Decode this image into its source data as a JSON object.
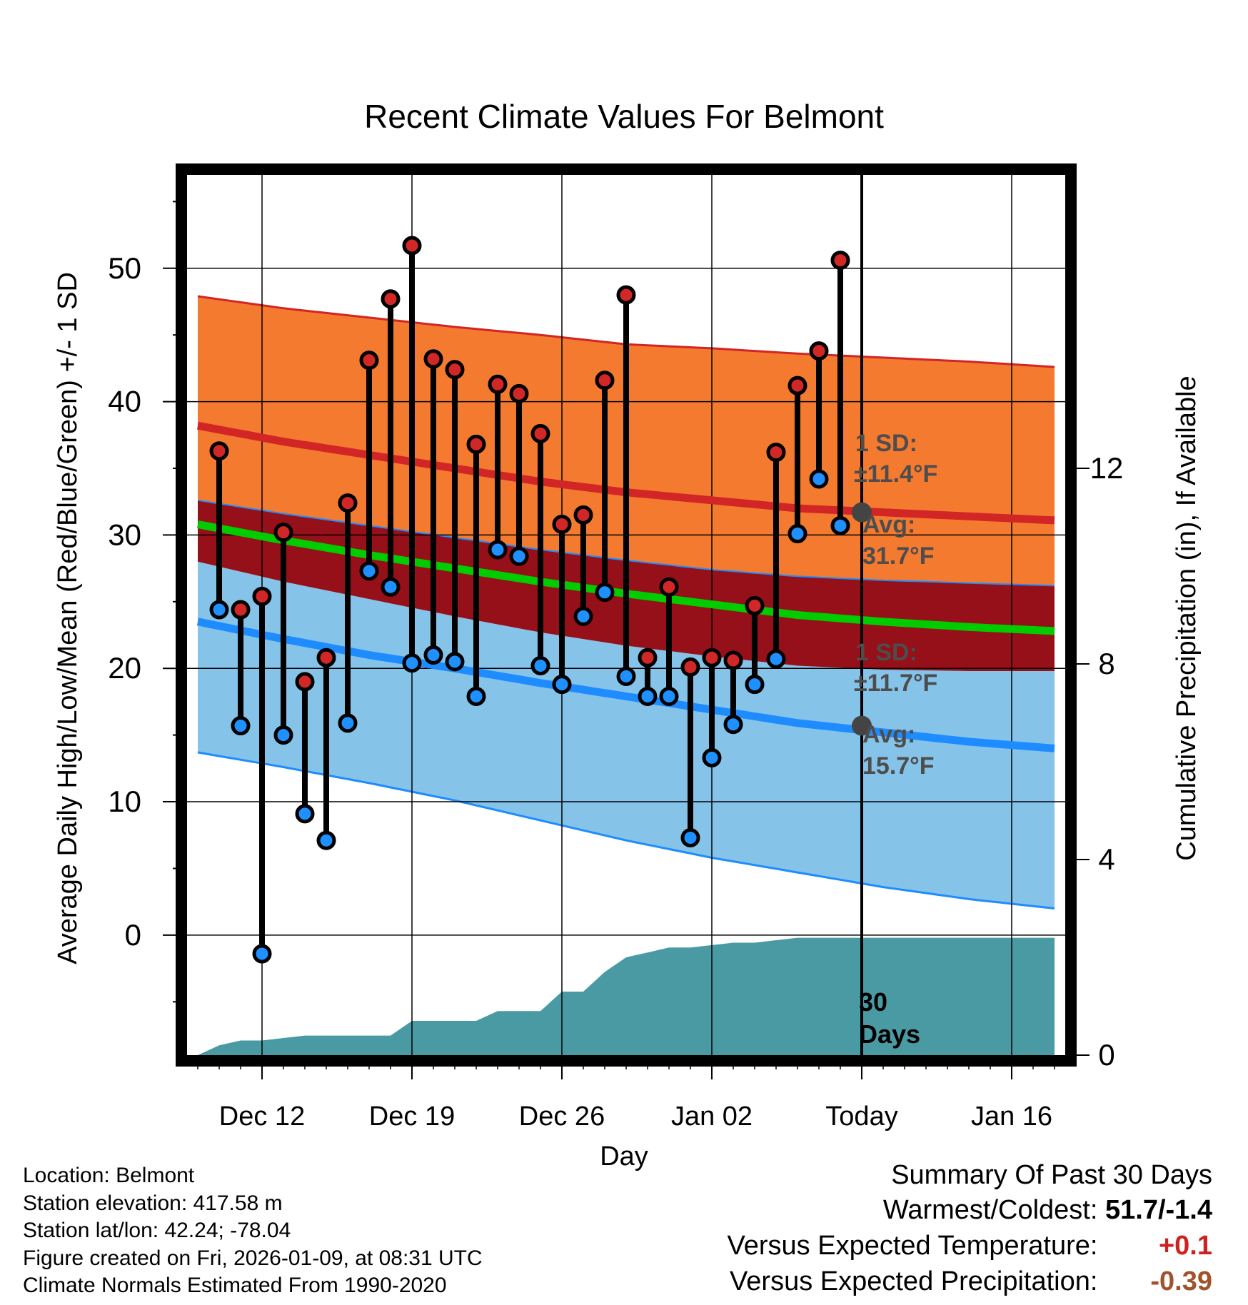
{
  "chart_data": {
    "type": "range-bar",
    "title": "Recent Climate Values For Belmont",
    "xlabel": "Day",
    "ylabel_left": "Average Daily High/Low/Mean (Red/Blue/Green) +/- 1 SD",
    "ylabel_right": "Cumulative Precipitation (in), If Available",
    "x_range": [
      -0.5,
      40.5
    ],
    "ylim_left": [
      -9,
      57
    ],
    "ylim_right": [
      0,
      18
    ],
    "x_tick_days": [
      3,
      10,
      17,
      24,
      31,
      38
    ],
    "x_tick_labels": [
      "Dec 12",
      "Dec 19",
      "Dec 26",
      "Jan 02",
      "Today",
      "Jan 16"
    ],
    "y_left_ticks": [
      0,
      10,
      20,
      30,
      40,
      50
    ],
    "y_right_ticks": [
      0,
      4,
      8,
      12
    ],
    "today_day": 31,
    "daily_high": [
      36.3,
      24.4,
      25.4,
      30.2,
      19.0,
      20.8,
      32.4,
      43.1,
      47.7,
      51.7,
      43.2,
      42.4,
      36.8,
      41.3,
      40.6,
      37.6,
      30.8,
      31.5,
      41.6,
      48.0,
      20.8,
      26.1,
      20.1,
      20.8,
      20.6,
      24.7,
      36.2,
      41.2,
      43.8,
      50.6
    ],
    "daily_low": [
      24.4,
      15.7,
      -1.4,
      15.0,
      9.1,
      7.1,
      15.9,
      27.3,
      26.1,
      20.4,
      21.0,
      20.5,
      17.9,
      28.9,
      28.4,
      20.2,
      18.8,
      23.9,
      25.7,
      19.4,
      17.9,
      17.9,
      7.3,
      13.3,
      15.8,
      18.8,
      20.7,
      30.1,
      34.2,
      30.7
    ],
    "normal_high": [
      38.2,
      37.0,
      36.0,
      35.0,
      34.0,
      33.2,
      32.6,
      32.0,
      31.7,
      31.4,
      31.1
    ],
    "normal_high_plus_sd": [
      47.9,
      47.0,
      46.3,
      45.6,
      45.0,
      44.3,
      44.0,
      43.6,
      43.3,
      43.0,
      42.6
    ],
    "normal_high_minus_sd": [
      32.6,
      31.6,
      30.7,
      29.8,
      28.9,
      28.1,
      27.4,
      26.9,
      26.6,
      26.4,
      26.2
    ],
    "normal_mean": [
      30.8,
      29.6,
      28.5,
      27.5,
      26.5,
      25.6,
      24.8,
      24.0,
      23.5,
      23.1,
      22.8
    ],
    "normal_low": [
      23.5,
      22.2,
      21.0,
      20.0,
      18.9,
      17.9,
      16.9,
      15.9,
      15.2,
      14.5,
      14.0
    ],
    "normal_low_plus_sd": [
      28.0,
      26.5,
      25.2,
      23.9,
      22.7,
      21.7,
      20.9,
      20.2,
      19.9,
      19.8,
      19.8
    ],
    "normal_low_minus_sd": [
      13.7,
      12.6,
      11.4,
      10.1,
      8.6,
      7.1,
      5.8,
      4.7,
      3.6,
      2.7,
      2.0
    ],
    "normals_days": [
      0,
      4,
      8,
      12,
      16,
      20,
      24,
      28,
      32,
      36,
      40
    ],
    "cumulative_precip": [
      0.0,
      0.2,
      0.3,
      0.3,
      0.35,
      0.4,
      0.4,
      0.4,
      0.4,
      0.4,
      0.7,
      0.7,
      0.7,
      0.7,
      0.9,
      0.9,
      0.9,
      1.3,
      1.3,
      1.7,
      2.0,
      2.1,
      2.2,
      2.2,
      2.25,
      2.3,
      2.3,
      2.35,
      2.4,
      2.4,
      2.4
    ],
    "annotations": {
      "high_sd_label": "1 SD:",
      "high_sd_value": "±11.4°F",
      "high_avg_label": "Avg:",
      "high_avg_value": "31.7°F",
      "low_sd_label": "1 SD:",
      "low_sd_value": "±11.7°F",
      "low_avg_label": "Avg:",
      "low_avg_value": "15.7°F",
      "days_label_1": "30",
      "days_label_2": "Days"
    },
    "today_avg_high": 31.7,
    "today_avg_low": 15.7
  },
  "colors": {
    "high_band": "#f47a30",
    "high_line": "#d22525",
    "overlap_band": "#951018",
    "mean_line": "#00cc00",
    "low_band": "#85c3e8",
    "low_line": "#1e8cff",
    "precip": "#4a9aa4",
    "high_dot": "#d12727",
    "low_dot": "#1e90ff",
    "warm_value": "#cc2222",
    "precip_value": "#a0522d"
  },
  "footer": {
    "location": "Location: Belmont",
    "elevation": "Station elevation: 417.58 m",
    "latlon": "Station lat/lon: 42.24; -78.04",
    "created": "Figure created on Fri, 2026-01-09, at 08:31 UTC",
    "normals": "Climate Normals Estimated From 1990-2020"
  },
  "summary": {
    "header": "Summary Of Past 30 Days",
    "warm_cold_label": "Warmest/Coldest:",
    "warm_cold_value": "51.7/-1.4",
    "temp_label": "Versus Expected Temperature:",
    "temp_value": "+0.1",
    "precip_label": "Versus Expected Precipitation:",
    "precip_value": "-0.39"
  }
}
